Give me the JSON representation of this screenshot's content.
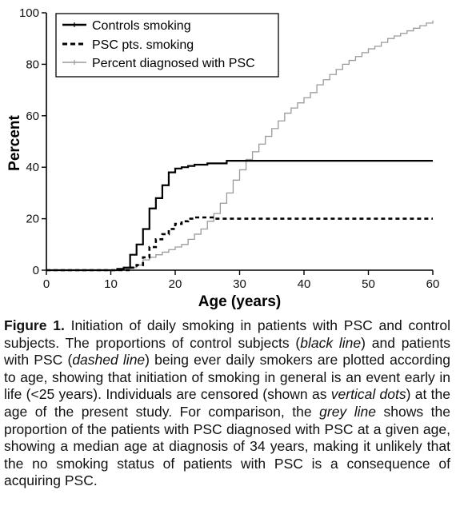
{
  "chart_data": {
    "type": "line",
    "xlabel": "Age (years)",
    "ylabel": "Percent",
    "xlim": [
      0,
      60
    ],
    "ylim": [
      0,
      100
    ],
    "x_ticks": [
      0,
      10,
      20,
      30,
      40,
      50,
      60
    ],
    "y_ticks": [
      0,
      20,
      40,
      60,
      80,
      100
    ],
    "grid": false,
    "legend_position": "top-left",
    "series": [
      {
        "name": "Controls smoking",
        "style": "solid-black-step",
        "color": "#000000",
        "points": [
          [
            0,
            0
          ],
          [
            10,
            0
          ],
          [
            11,
            0.5
          ],
          [
            12,
            1
          ],
          [
            13,
            6
          ],
          [
            14,
            10
          ],
          [
            15,
            16
          ],
          [
            16,
            24
          ],
          [
            17,
            28
          ],
          [
            18,
            33
          ],
          [
            19,
            38
          ],
          [
            20,
            39.5
          ],
          [
            21,
            40
          ],
          [
            22,
            40.5
          ],
          [
            23,
            41
          ],
          [
            25,
            41.5
          ],
          [
            28,
            42.5
          ],
          [
            30,
            42.5
          ],
          [
            60,
            42.5
          ]
        ]
      },
      {
        "name": "PSC pts. smoking",
        "style": "dashed-black-step",
        "color": "#000000",
        "points": [
          [
            0,
            0
          ],
          [
            12,
            0
          ],
          [
            13,
            1
          ],
          [
            14,
            2
          ],
          [
            15,
            5
          ],
          [
            16,
            9
          ],
          [
            17,
            12
          ],
          [
            18,
            14
          ],
          [
            19,
            16
          ],
          [
            20,
            18
          ],
          [
            21,
            19
          ],
          [
            22,
            20
          ],
          [
            23,
            20.5
          ],
          [
            26,
            20
          ],
          [
            60,
            20
          ]
        ]
      },
      {
        "name": "Percent diagnosed with PSC",
        "style": "solid-grey-step",
        "color": "#9a9a9a",
        "points": [
          [
            0,
            0
          ],
          [
            11,
            0
          ],
          [
            12,
            0.5
          ],
          [
            13,
            1
          ],
          [
            14,
            2
          ],
          [
            15,
            4
          ],
          [
            16,
            5
          ],
          [
            17,
            6
          ],
          [
            18,
            7
          ],
          [
            19,
            8
          ],
          [
            20,
            9
          ],
          [
            21,
            10
          ],
          [
            22,
            12
          ],
          [
            23,
            14
          ],
          [
            24,
            16
          ],
          [
            25,
            19
          ],
          [
            26,
            22
          ],
          [
            27,
            26
          ],
          [
            28,
            30
          ],
          [
            29,
            35
          ],
          [
            30,
            39
          ],
          [
            31,
            43
          ],
          [
            32,
            46
          ],
          [
            33,
            49
          ],
          [
            34,
            52
          ],
          [
            35,
            55
          ],
          [
            36,
            58
          ],
          [
            37,
            61
          ],
          [
            38,
            63
          ],
          [
            39,
            65
          ],
          [
            40,
            67
          ],
          [
            41,
            69
          ],
          [
            42,
            72
          ],
          [
            43,
            74
          ],
          [
            44,
            76
          ],
          [
            45,
            78
          ],
          [
            46,
            80
          ],
          [
            47,
            81.5
          ],
          [
            48,
            83
          ],
          [
            49,
            84.5
          ],
          [
            50,
            86
          ],
          [
            51,
            87
          ],
          [
            52,
            88.5
          ],
          [
            53,
            90
          ],
          [
            54,
            91
          ],
          [
            55,
            92
          ],
          [
            56,
            93
          ],
          [
            57,
            94
          ],
          [
            58,
            95
          ],
          [
            59,
            96
          ],
          [
            60,
            97
          ]
        ]
      }
    ]
  },
  "caption": {
    "label": "Figure 1.",
    "parts": [
      {
        "text": " Initiation of daily smoking in patients with PSC and control subjects. The proportions of control subjects (",
        "italic": false
      },
      {
        "text": "black line",
        "italic": true
      },
      {
        "text": ") and patients with PSC (",
        "italic": false
      },
      {
        "text": "dashed line",
        "italic": true
      },
      {
        "text": ") being ever daily smokers are plotted according to age, showing that initiation of smoking in general is an event early in life (<25 years). Individuals are censored (shown as ",
        "italic": false
      },
      {
        "text": "vertical dots",
        "italic": true
      },
      {
        "text": ") at the age of the present study. For comparison, the ",
        "italic": false
      },
      {
        "text": "grey line",
        "italic": true
      },
      {
        "text": " shows the proportion of the patients with PSC diagnosed with PSC at a given age, showing a median age at diagnosis of 34 years, making it unlikely that the no smoking status of patients with PSC is a consequence of acquiring PSC.",
        "italic": false
      }
    ]
  }
}
